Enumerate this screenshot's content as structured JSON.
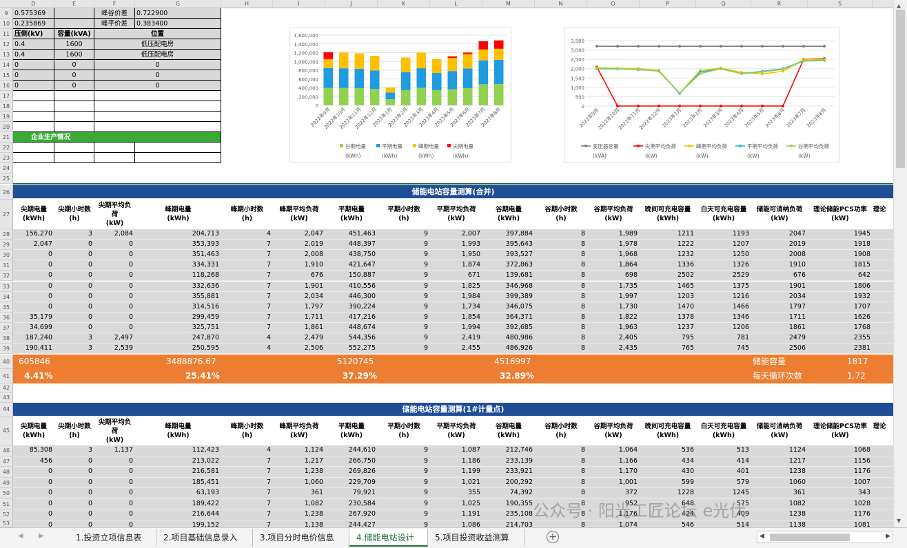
{
  "columns": [
    "D",
    "E",
    "F",
    "G",
    "H",
    "I",
    "J",
    "K",
    "L",
    "M",
    "N",
    "O",
    "P",
    "Q",
    "R",
    "S"
  ],
  "top_rows": {
    "row_numbers": [
      "9",
      "10",
      "11",
      "12",
      "13",
      "14",
      "15",
      "16",
      "17",
      "18",
      "19",
      "20",
      "21",
      "22",
      "23",
      "24",
      "25"
    ],
    "r9": {
      "d": "0.575369",
      "f_label": "峰谷价差",
      "g": "0.722900"
    },
    "r10": {
      "d": "0.235869",
      "f_label": "峰平价差",
      "g": "0.383400"
    },
    "r11": {
      "d": "压侧(kV)",
      "e": "容量(kVA)",
      "g": "位置"
    },
    "r12": {
      "d": "0.4",
      "e": "1600",
      "g": "低压配电房"
    },
    "r13": {
      "d": "0.4",
      "e": "1600",
      "g": "低压配电房"
    },
    "r14": {
      "d": "0",
      "e": "0",
      "g": "0"
    },
    "r15": {
      "d": "0",
      "e": "0",
      "g": "0"
    },
    "r16": {
      "d": "0",
      "e": "0",
      "g": "0"
    },
    "r21": {
      "title": "企业生产情况"
    }
  },
  "chart1": {
    "type": "bar",
    "stacked": true,
    "categories": [
      "2022年9月",
      "2022年10月",
      "2022年11月",
      "2022年12月",
      "2023年1月",
      "2023年2月",
      "2023年3月",
      "2023年4月",
      "2023年5月",
      "2023年6月",
      "2023年7月",
      "2023年8月"
    ],
    "series": [
      {
        "name": "谷期电量",
        "unit": "(kWh)",
        "color": "#92d050",
        "values": [
          397884,
          395643,
          393527,
          372863,
          139681,
          346968,
          399389,
          346075,
          364371,
          392685,
          480986,
          486926
        ]
      },
      {
        "name": "平期电量",
        "unit": "(kWh)",
        "color": "#1f9be0",
        "values": [
          451463,
          448397,
          438750,
          421647,
          150887,
          410556,
          446300,
          390224,
          417216,
          448674,
          544356,
          552275
        ]
      },
      {
        "name": "峰期电量",
        "unit": "(kWh)",
        "color": "#ffc000",
        "values": [
          204713,
          353393,
          351463,
          334331,
          118268,
          332636,
          355881,
          314516,
          299459,
          325751,
          247870,
          250595
        ]
      },
      {
        "name": "尖期电量",
        "unit": "(kWh)",
        "color": "#ff0000",
        "values": [
          156270,
          2047,
          0,
          0,
          0,
          0,
          0,
          0,
          35179,
          34699,
          187240,
          190411
        ]
      }
    ],
    "yticks": [
      "0",
      "200,000",
      "400,000",
      "600,000",
      "800,000",
      "1,000,000",
      "1,200,000",
      "1,400,000",
      "1,600,000"
    ],
    "ylim": [
      0,
      1600000
    ]
  },
  "chart2": {
    "type": "line",
    "categories": [
      "2022年9月",
      "2022年10月",
      "2022年11月",
      "2022年12月",
      "2023年1月",
      "2023年2月",
      "2023年3月",
      "2023年4月",
      "2023年5月",
      "2023年6月",
      "2023年7月",
      "2023年8月"
    ],
    "series": [
      {
        "name": "变压器容量",
        "unit": "(kVA)",
        "color": "#7f7f7f",
        "values": [
          3200,
          3200,
          3200,
          3200,
          3200,
          3200,
          3200,
          3200,
          3200,
          3200,
          3200,
          3200
        ]
      },
      {
        "name": "尖期平均负荷",
        "unit": "(kW)",
        "color": "#ff0000",
        "values": [
          2084,
          0,
          0,
          0,
          0,
          0,
          0,
          0,
          0,
          0,
          2497,
          2539
        ]
      },
      {
        "name": "峰期平均负荷",
        "unit": "(kW)",
        "color": "#ffc000",
        "values": [
          2047,
          2019,
          2008,
          1910,
          676,
          1901,
          2034,
          1797,
          1711,
          1861,
          2479,
          2506
        ]
      },
      {
        "name": "平期平均负荷",
        "unit": "(kW)",
        "color": "#1fb5e0",
        "values": [
          2007,
          1993,
          1950,
          1874,
          671,
          1825,
          1984,
          1734,
          1854,
          1994,
          2419,
          2455
        ]
      },
      {
        "name": "谷期平均负荷",
        "unit": "(kW)",
        "color": "#92d050",
        "values": [
          1989,
          1978,
          1968,
          1864,
          698,
          1735,
          1997,
          1730,
          1822,
          1963,
          2405,
          2435
        ]
      }
    ],
    "yticks": [
      "0",
      "500",
      "1,000",
      "1,500",
      "2,000",
      "2,500",
      "3,000",
      "3,500"
    ],
    "ylim": [
      0,
      3500
    ]
  },
  "section1": {
    "banner": "储能电站容量测算(合并)",
    "header_row_numbers": [
      "26",
      "27"
    ],
    "headers": [
      "尖期电量\n(kWh)",
      "尖期小时数\n(h)",
      "尖期平均负\n荷\n(kW)",
      "峰期电量\n(kWh)",
      "峰期小时数\n(h)",
      "峰期平均负荷\n(kW)",
      "平期电量\n(kWh)",
      "平期小时数\n(h)",
      "平期平均负荷\n(kW)",
      "谷期电量\n(kWh)",
      "谷期小时数\n(h)",
      "谷期平均负荷\n(kW)",
      "晚间可充电容量\n(kWh)",
      "白天可充电容量\n(kWh)",
      "储能可消纳负荷\n(kW)",
      "理论储能PCS功率\n(kW)",
      "理论"
    ],
    "row_numbers": [
      "28",
      "29",
      "30",
      "31",
      "32",
      "33",
      "34",
      "35",
      "36",
      "37",
      "38",
      "39"
    ],
    "rows": [
      [
        "156,270",
        "3",
        "2,084",
        "204,713",
        "4",
        "2,047",
        "451,463",
        "9",
        "2,007",
        "397,884",
        "8",
        "1,989",
        "1211",
        "1193",
        "2047",
        "1945"
      ],
      [
        "2,047",
        "0",
        "0",
        "353,393",
        "7",
        "2,019",
        "448,397",
        "9",
        "1,993",
        "395,643",
        "8",
        "1,978",
        "1222",
        "1207",
        "2019",
        "1918"
      ],
      [
        "0",
        "0",
        "0",
        "351,463",
        "7",
        "2,008",
        "438,750",
        "9",
        "1,950",
        "393,527",
        "8",
        "1,968",
        "1232",
        "1250",
        "2008",
        "1908"
      ],
      [
        "0",
        "0",
        "0",
        "334,331",
        "7",
        "1,910",
        "421,647",
        "9",
        "1,874",
        "372,863",
        "8",
        "1,864",
        "1336",
        "1326",
        "1910",
        "1815"
      ],
      [
        "0",
        "0",
        "0",
        "118,268",
        "7",
        "676",
        "150,887",
        "9",
        "671",
        "139,681",
        "8",
        "698",
        "2502",
        "2529",
        "676",
        "642"
      ],
      [
        "0",
        "0",
        "0",
        "332,636",
        "7",
        "1,901",
        "410,556",
        "9",
        "1,825",
        "346,968",
        "8",
        "1,735",
        "1465",
        "1375",
        "1901",
        "1806"
      ],
      [
        "0",
        "0",
        "0",
        "355,881",
        "7",
        "2,034",
        "446,300",
        "9",
        "1,984",
        "399,389",
        "8",
        "1,997",
        "1203",
        "1216",
        "2034",
        "1932"
      ],
      [
        "0",
        "0",
        "0",
        "314,516",
        "7",
        "1,797",
        "390,224",
        "9",
        "1,734",
        "346,075",
        "8",
        "1,730",
        "1470",
        "1466",
        "1797",
        "1707"
      ],
      [
        "35,179",
        "0",
        "0",
        "299,459",
        "7",
        "1,711",
        "417,216",
        "9",
        "1,854",
        "364,371",
        "8",
        "1,822",
        "1378",
        "1346",
        "1711",
        "1626"
      ],
      [
        "34,699",
        "0",
        "0",
        "325,751",
        "7",
        "1,861",
        "448,674",
        "9",
        "1,994",
        "392,685",
        "8",
        "1,963",
        "1237",
        "1206",
        "1861",
        "1768"
      ],
      [
        "187,240",
        "3",
        "2,497",
        "247,870",
        "4",
        "2,479",
        "544,356",
        "9",
        "2,419",
        "480,986",
        "8",
        "2,405",
        "795",
        "781",
        "2479",
        "2355"
      ],
      [
        "190,411",
        "3",
        "2,539",
        "250,595",
        "4",
        "2,506",
        "552,275",
        "9",
        "2,455",
        "486,926",
        "8",
        "2,435",
        "765",
        "745",
        "2506",
        "2381"
      ]
    ],
    "totals_row_number": "40",
    "totals": {
      "jian": "605846",
      "feng": "3488876.67",
      "ping": "5120745",
      "gu": "4516997",
      "cap_label": "储能容量",
      "cap_value": "1817"
    },
    "pct_row_number": "41",
    "pct": {
      "jian": "4.41%",
      "feng": "25.41%",
      "ping": "37.29%",
      "gu": "32.89%",
      "cycle_label": "每天循环次数",
      "cycle_value": "1.72"
    }
  },
  "gap_rows": [
    "42",
    "43"
  ],
  "section2": {
    "banner": "储能电站容量测算(1#计量点)",
    "header_row_numbers": [
      "44",
      "45"
    ],
    "row_numbers": [
      "46",
      "47",
      "48",
      "49",
      "50",
      "51",
      "52",
      "53"
    ],
    "rows": [
      [
        "85,308",
        "3",
        "1,137",
        "112,423",
        "4",
        "1,124",
        "244,610",
        "9",
        "1,087",
        "212,746",
        "8",
        "1,064",
        "536",
        "513",
        "1124",
        "1068"
      ],
      [
        "456",
        "0",
        "0",
        "213,022",
        "7",
        "1,217",
        "266,750",
        "9",
        "1,186",
        "233,139",
        "8",
        "1,166",
        "434",
        "414",
        "1217",
        "1156"
      ],
      [
        "0",
        "0",
        "0",
        "216,581",
        "7",
        "1,238",
        "269,826",
        "9",
        "1,199",
        "233,921",
        "8",
        "1,170",
        "430",
        "401",
        "1238",
        "1176"
      ],
      [
        "0",
        "0",
        "0",
        "185,451",
        "7",
        "1,060",
        "229,709",
        "9",
        "1,021",
        "200,292",
        "8",
        "1,001",
        "599",
        "579",
        "1060",
        "1007"
      ],
      [
        "0",
        "0",
        "0",
        "63,193",
        "7",
        "361",
        "79,921",
        "9",
        "355",
        "74,392",
        "8",
        "372",
        "1228",
        "1245",
        "361",
        "343"
      ],
      [
        "0",
        "0",
        "0",
        "189,422",
        "7",
        "1,082",
        "230,584",
        "9",
        "1,025",
        "190,355",
        "8",
        "952",
        "648",
        "575",
        "1082",
        "1028"
      ],
      [
        "0",
        "0",
        "0",
        "216,644",
        "7",
        "1,238",
        "267,920",
        "9",
        "1,191",
        "235,108",
        "8",
        "1,176",
        "424",
        "409",
        "1238",
        "1176"
      ],
      [
        "0",
        "0",
        "0",
        "199,152",
        "7",
        "1,138",
        "244,427",
        "9",
        "1,086",
        "214,703",
        "8",
        "1,074",
        "546",
        "514",
        "1138",
        "1081"
      ]
    ]
  },
  "tabs": [
    "1.投资立项信息表",
    "2.项目基础信息录入",
    "3.项目分时电价信息",
    "4.储能电站设计",
    "5.项目投资收益测算"
  ],
  "active_tab": 3,
  "watermark": "公众号 · 阳光工匠论坛 e光伏"
}
